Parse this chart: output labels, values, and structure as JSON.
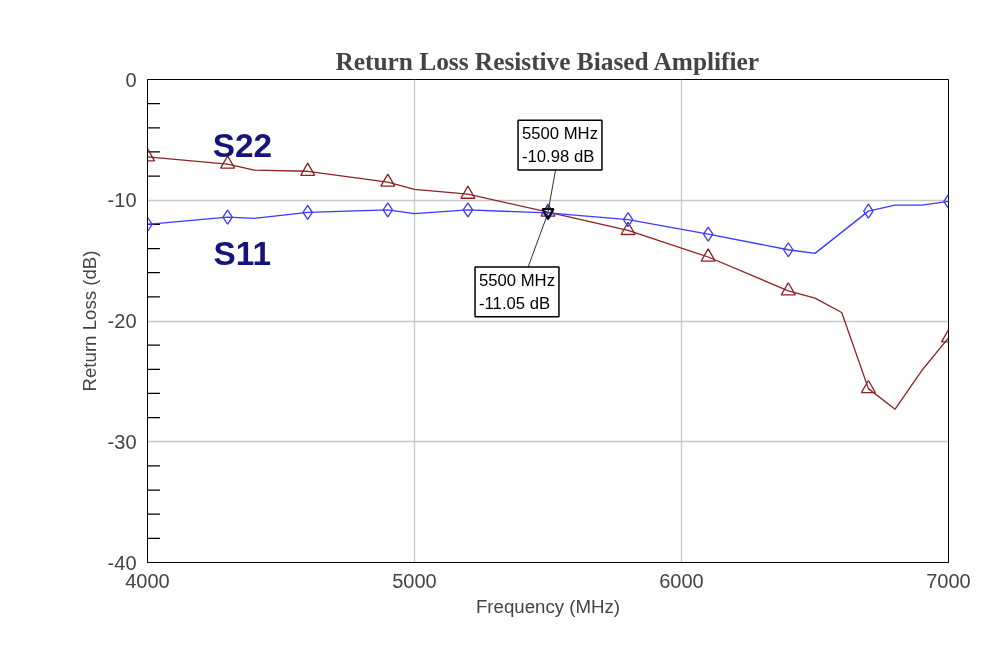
{
  "chart_data": {
    "type": "line",
    "title": "Return Loss Resistive Biased Amplifier",
    "xlabel": "Frequency (MHz)",
    "ylabel": "Return Loss (dB)",
    "xlim": [
      4000,
      7000
    ],
    "ylim": [
      -40,
      0
    ],
    "xticks": [
      4000,
      5000,
      6000,
      7000
    ],
    "yticks": [
      0,
      {
        "value": -2,
        "label": null
      },
      {
        "value": -4,
        "label": null
      },
      {
        "value": -6,
        "label": null
      },
      {
        "value": -8,
        "label": null
      },
      -10,
      {
        "value": -12,
        "label": null
      },
      {
        "value": -14,
        "label": null
      },
      {
        "value": -16,
        "label": null
      },
      {
        "value": -18,
        "label": null
      },
      -20,
      {
        "value": -22,
        "label": null
      },
      {
        "value": -24,
        "label": null
      },
      {
        "value": -26,
        "label": null
      },
      {
        "value": -28,
        "label": null
      },
      -30,
      {
        "value": -32,
        "label": null
      },
      {
        "value": -34,
        "label": null
      },
      {
        "value": -36,
        "label": null
      },
      {
        "value": -38,
        "label": null
      },
      -40
    ],
    "grid": true,
    "line_style": "solid",
    "series": [
      {
        "name": "S22",
        "color": "#8b2323",
        "marker": "none",
        "x": [
          4000,
          4300,
          4400,
          4600,
          4900,
          5000,
          5200,
          5500,
          5800,
          6100,
          6400,
          6500,
          6600,
          6700,
          6800,
          6900,
          7000
        ],
        "values": [
          -6.4,
          -7.0,
          -7.5,
          -7.6,
          -8.5,
          -9.1,
          -9.5,
          -10.98,
          -12.5,
          -14.7,
          -17.5,
          -18.1,
          -19.3,
          -25.6,
          -27.3,
          -24.1,
          -21.4
        ]
      },
      {
        "type": "scatter",
        "color": "#8b2323",
        "marker": "triangle",
        "x": [
          4000,
          4300,
          4600,
          4900,
          5200,
          5500,
          5800,
          6100,
          6400,
          6700,
          7000
        ],
        "values": [
          -6.4,
          -7.0,
          -7.6,
          -8.5,
          -9.5,
          -10.98,
          -12.5,
          -14.7,
          -17.5,
          -25.6,
          -21.4
        ]
      },
      {
        "name": "S11",
        "color": "#3a3aff",
        "marker": "none",
        "x": [
          4000,
          4300,
          4400,
          4600,
          4900,
          5000,
          5200,
          5500,
          5800,
          6100,
          6400,
          6500,
          6700,
          6800,
          6900,
          7000
        ],
        "values": [
          -12.0,
          -11.4,
          -11.5,
          -11.0,
          -10.8,
          -11.1,
          -10.8,
          -11.05,
          -11.6,
          -12.8,
          -14.1,
          -14.4,
          -10.9,
          -10.4,
          -10.4,
          -10.1
        ]
      },
      {
        "type": "scatter",
        "color": "#3a3aff",
        "marker": "diamond",
        "x": [
          4000,
          4300,
          4600,
          4900,
          5200,
          5500,
          5800,
          6100,
          6400,
          6700,
          7000
        ],
        "values": [
          -12.0,
          -11.4,
          -11.0,
          -10.8,
          -10.8,
          -11.05,
          -11.6,
          -12.8,
          -14.1,
          -10.9,
          -10.1
        ]
      }
    ],
    "annotations": [
      {
        "text": "5500 MHz\n-10.98 dB",
        "x": 5500,
        "y": -10.98
      },
      {
        "text": "5500 MHz\n-11.05 dB",
        "x": 5500,
        "y": -11.05
      }
    ]
  }
}
